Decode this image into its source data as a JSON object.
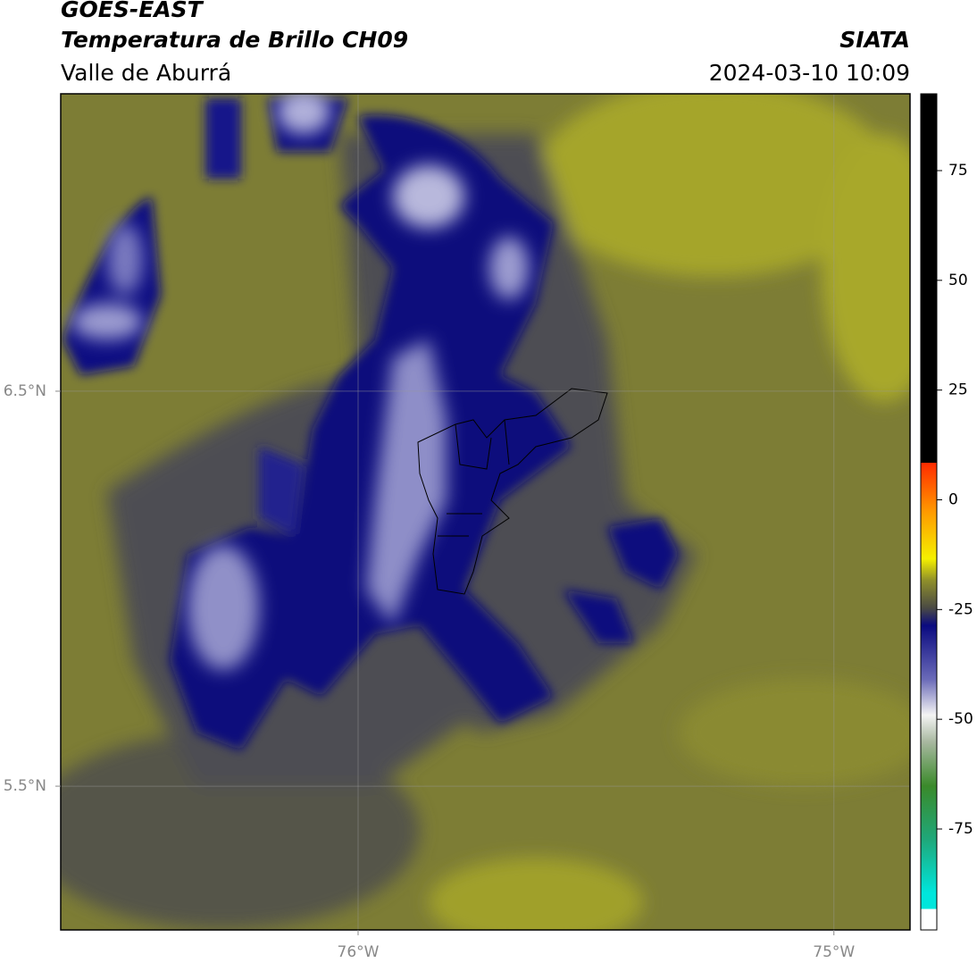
{
  "header": {
    "title": "GOES-EAST",
    "subtitle": "Temperatura de Brillo CH09",
    "region": "Valle de Aburrá",
    "source": "SIATA",
    "datetime": "2024-03-10 10:09"
  },
  "map": {
    "lonlim": [
      -76.625,
      -74.84
    ],
    "latlim": [
      5.136,
      7.253
    ],
    "lonticks": [
      {
        "value": -76,
        "label": "76°W"
      },
      {
        "value": -75,
        "label": "75°W"
      }
    ],
    "latticks": [
      {
        "value": 6.5,
        "label": "6.5°N"
      },
      {
        "value": 5.5,
        "label": "5.5°N"
      }
    ],
    "grid": true
  },
  "colorbar": {
    "lim": [
      -98,
      92.5
    ],
    "ticks": [
      75,
      50,
      25,
      0,
      -25,
      -50,
      -75
    ]
  }
}
